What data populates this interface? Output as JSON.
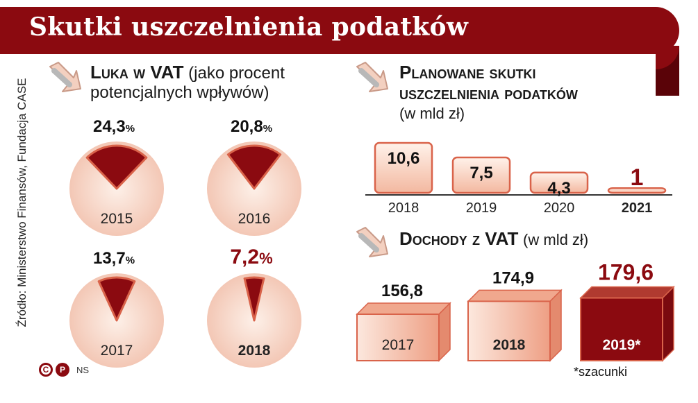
{
  "header": {
    "title": "Skutki uszczelnienia podatków"
  },
  "source": "Źródło: Ministerstwo Finansów, Fundacja CASE",
  "credits": {
    "c_logo": "C",
    "p_logo": "P",
    "initials": "NS"
  },
  "colors": {
    "brand": "#8b0a10",
    "pale": "#f6d6c6",
    "light": "#f2b9a2",
    "bar_edge": "#d9634a"
  },
  "sections": {
    "vat_gap": {
      "bold": "Luka w VAT",
      "thin_line1": "(jako procent",
      "thin_line2": "potencjalnych wpływów)"
    },
    "planned": {
      "bold_line1": "Planowane skutki",
      "bold_line2": "uszczelnienia podatków",
      "thin": "(w mld zł)"
    },
    "income": {
      "bold": "Dochody z VAT",
      "thin": "(w mld zł)"
    }
  },
  "footnote": "*szacunki",
  "chart_data": [
    {
      "type": "pie",
      "title": "Luka w VAT (jako procent potencjalnych wpływów)",
      "unit": "%",
      "items": [
        {
          "year": "2015",
          "value": 24.3,
          "label": "24,3",
          "highlight": false
        },
        {
          "year": "2016",
          "value": 20.8,
          "label": "20,8",
          "highlight": false
        },
        {
          "year": "2017",
          "value": 13.7,
          "label": "13,7",
          "highlight": false
        },
        {
          "year": "2018",
          "value": 7.2,
          "label": "7,2",
          "highlight": true
        }
      ]
    },
    {
      "type": "bar",
      "title": "Planowane skutki uszczelnienia podatków (w mld zł)",
      "categories": [
        "2018",
        "2019",
        "2020",
        "2021"
      ],
      "values": [
        10.6,
        7.5,
        4.3,
        1
      ],
      "labels": [
        "10,6",
        "7,5",
        "4,3",
        "1"
      ],
      "highlight_index": 3
    },
    {
      "type": "bar",
      "title": "Dochody z VAT (w mld zł)",
      "categories": [
        "2017",
        "2018",
        "2019*"
      ],
      "values": [
        156.8,
        174.9,
        179.6
      ],
      "labels": [
        "156,8",
        "174,9",
        "179,6"
      ],
      "highlight_index": 2
    }
  ]
}
